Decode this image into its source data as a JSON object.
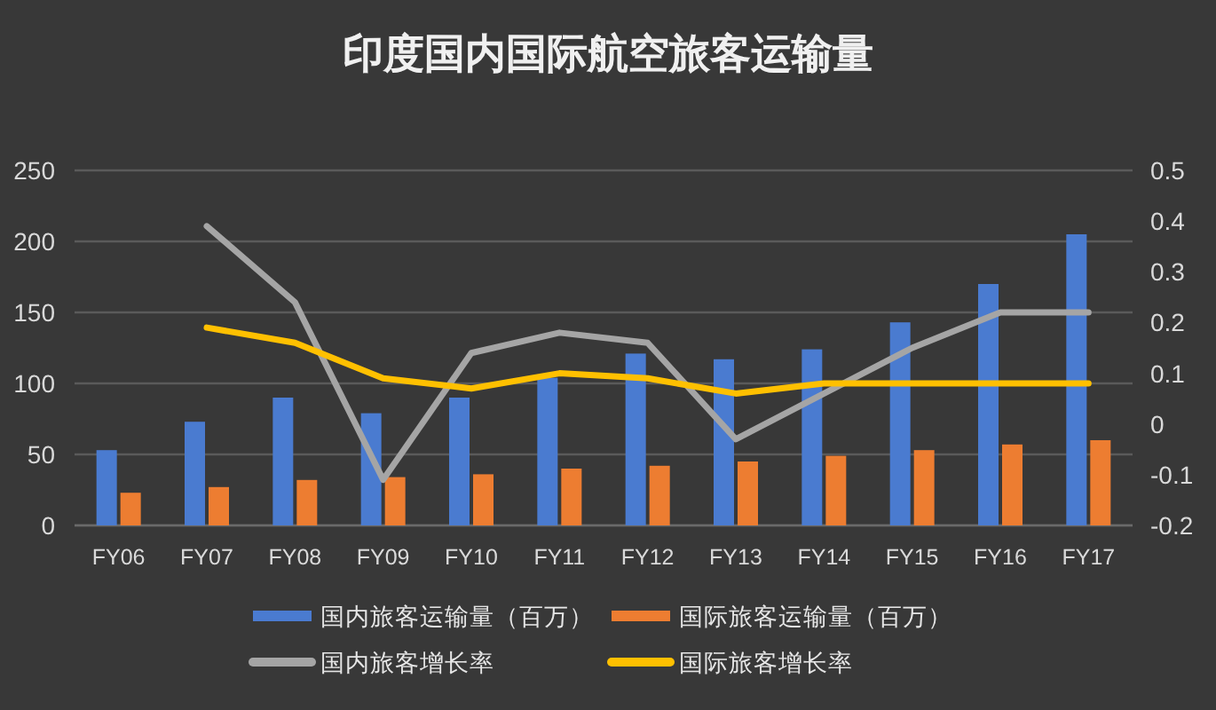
{
  "chart_data": {
    "type": "bar",
    "title": "印度国内国际航空旅客运输量",
    "categories": [
      "FY06",
      "FY07",
      "FY08",
      "FY09",
      "FY10",
      "FY11",
      "FY12",
      "FY13",
      "FY14",
      "FY15",
      "FY16",
      "FY17"
    ],
    "series": [
      {
        "name": "国内旅客运输量（百万）",
        "color": "#4a7bd0",
        "values": [
          53,
          73,
          90,
          79,
          90,
          104,
          121,
          117,
          124,
          143,
          170,
          205
        ]
      },
      {
        "name": "国际旅客运输量（百万）",
        "color": "#ed7d31",
        "values": [
          23,
          27,
          32,
          34,
          36,
          40,
          42,
          45,
          49,
          53,
          57,
          60
        ]
      },
      {
        "name": "国内旅客增长率",
        "type": "line",
        "axis": "y2",
        "color": "#a5a5a5",
        "values": [
          null,
          0.39,
          0.24,
          -0.11,
          0.14,
          0.18,
          0.16,
          -0.03,
          0.06,
          0.15,
          0.22,
          0.22
        ]
      },
      {
        "name": "国际旅客增长率",
        "type": "line",
        "axis": "y2",
        "color": "#ffc000",
        "values": [
          null,
          0.19,
          0.16,
          0.09,
          0.07,
          0.1,
          0.09,
          0.06,
          0.08,
          0.08,
          0.08,
          0.08
        ]
      }
    ],
    "ylim": [
      0,
      250
    ],
    "yticks": [
      0,
      50,
      100,
      150,
      200,
      250
    ],
    "y2lim": [
      -0.2,
      0.5
    ],
    "y2ticks": [
      -0.2,
      -0.1,
      0,
      0.1,
      0.2,
      0.3,
      0.4,
      0.5
    ],
    "grid": "y",
    "legend": "bottom"
  }
}
